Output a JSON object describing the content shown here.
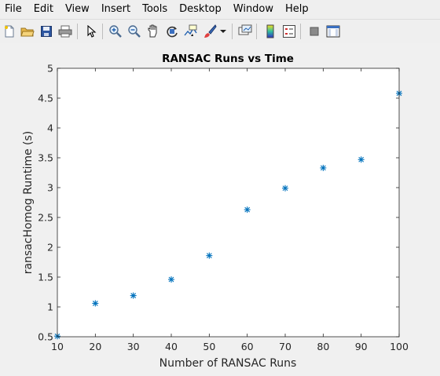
{
  "menu": {
    "items": [
      "File",
      "Edit",
      "View",
      "Insert",
      "Tools",
      "Desktop",
      "Window",
      "Help"
    ]
  },
  "toolbar": {
    "icons": [
      "new-file-icon",
      "open-folder-icon",
      "save-icon",
      "print-icon",
      "pointer-icon",
      "zoom-in-icon",
      "zoom-out-icon",
      "pan-hand-icon",
      "rotate-3d-icon",
      "data-cursor-icon",
      "brush-icon",
      "brush-dropdown-icon",
      "link-plot-icon",
      "colorbar-icon",
      "legend-icon",
      "hide-plot-tools-icon",
      "show-plot-tools-icon"
    ]
  },
  "colors": {
    "marker": "#0072BD",
    "axes_bg": "#ffffff",
    "figure_bg": "#f0f0f0"
  },
  "chart_data": {
    "type": "scatter",
    "title": "RANSAC Runs vs Time",
    "xlabel": "Number of RANSAC Runs",
    "ylabel": "ransacHomog Runtime (s)",
    "xlim": [
      10,
      100
    ],
    "ylim": [
      0.5,
      5
    ],
    "xticks": [
      10,
      20,
      30,
      40,
      50,
      60,
      70,
      80,
      90,
      100
    ],
    "yticks": [
      0.5,
      1,
      1.5,
      2,
      2.5,
      3,
      3.5,
      4,
      4.5,
      5
    ],
    "ytick_labels": [
      "0.5",
      "1",
      "1.5",
      "2",
      "2.5",
      "3",
      "3.5",
      "4",
      "4.5",
      "5"
    ],
    "marker": "asterisk",
    "grid": false,
    "x": [
      10,
      20,
      30,
      40,
      50,
      60,
      70,
      80,
      90,
      100
    ],
    "y": [
      0.51,
      1.06,
      1.19,
      1.46,
      1.86,
      2.63,
      2.99,
      3.33,
      3.47,
      4.58
    ]
  }
}
